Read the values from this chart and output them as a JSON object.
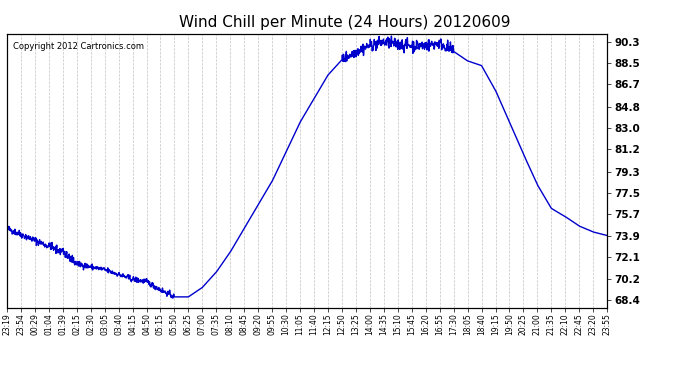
{
  "title": "Wind Chill per Minute (24 Hours) 20120609",
  "copyright": "Copyright 2012 Cartronics.com",
  "line_color": "#0000cc",
  "bg_color": "#ffffff",
  "plot_bg_color": "#ffffff",
  "grid_color": "#aaaaaa",
  "yticks": [
    68.4,
    70.2,
    72.1,
    73.9,
    75.7,
    77.5,
    79.3,
    81.2,
    83.0,
    84.8,
    86.7,
    88.5,
    90.3
  ],
  "ylim": [
    67.8,
    91.0
  ],
  "x_labels": [
    "23:19",
    "23:54",
    "00:29",
    "01:04",
    "01:39",
    "02:15",
    "02:30",
    "03:05",
    "03:40",
    "04:15",
    "04:50",
    "05:15",
    "05:50",
    "06:25",
    "07:00",
    "07:35",
    "08:10",
    "08:45",
    "09:20",
    "09:55",
    "10:30",
    "11:05",
    "11:40",
    "12:15",
    "12:50",
    "13:25",
    "14:00",
    "14:35",
    "15:10",
    "15:45",
    "16:20",
    "16:55",
    "17:30",
    "18:05",
    "18:40",
    "19:15",
    "19:50",
    "20:25",
    "21:00",
    "21:35",
    "22:10",
    "22:45",
    "23:20",
    "23:55"
  ],
  "line_width": 1.0
}
